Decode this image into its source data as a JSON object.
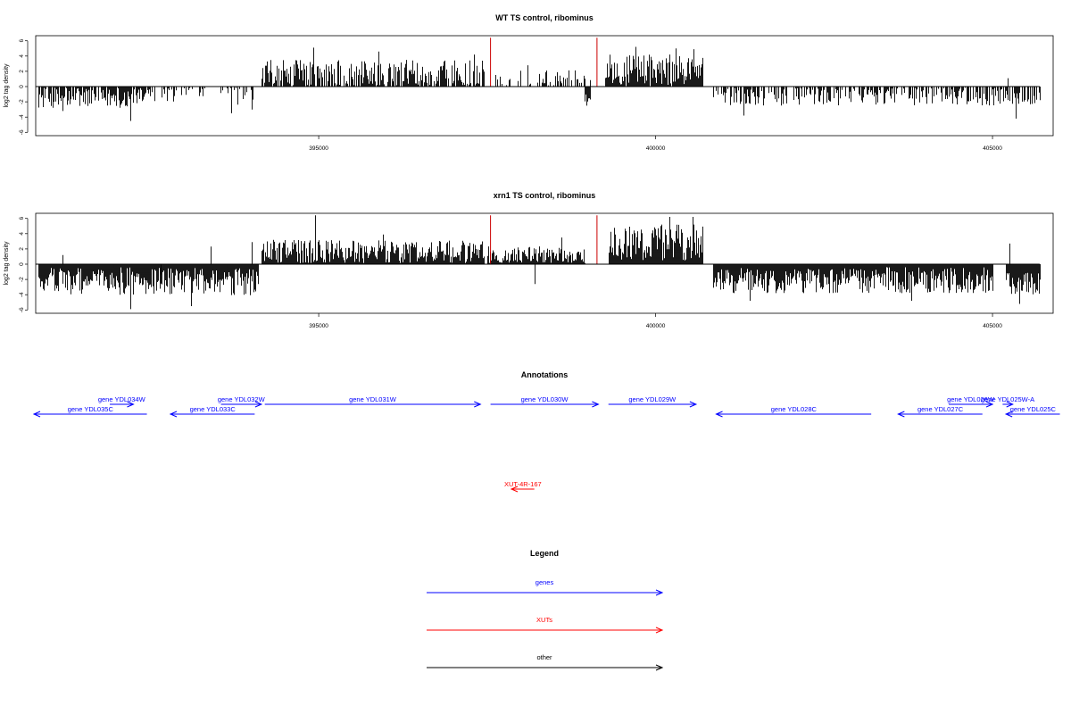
{
  "chart_data": [
    {
      "type": "bar",
      "title": "WT TS control, ribominus",
      "xlabel": "",
      "ylabel": "log2 tag density",
      "xlim": [
        390800,
        405900
      ],
      "ylim": [
        -6.2,
        6.6
      ],
      "x_ticks": [
        395000,
        400000,
        405000
      ],
      "x_tick_labels": [
        "395000",
        "400000",
        "405000"
      ],
      "y_ticks": [
        -6,
        -4,
        -2,
        0,
        2,
        4,
        6
      ],
      "y_tick_labels": [
        "-6",
        "-4",
        "-2",
        "0",
        "2",
        "4",
        "6"
      ],
      "baseline": {
        "x": [
          390800,
          405700
        ],
        "y": 0
      },
      "highlight_lines": [
        {
          "x": 397550,
          "value": 6.4,
          "color": "#cc0000"
        },
        {
          "x": 399130,
          "value": 6.4,
          "color": "#cc0000"
        }
      ],
      "segments": [
        {
          "from": 390840,
          "to": 392500,
          "mean": -1.4,
          "spread": 1.4,
          "density": 0.85,
          "peaks": [
            [
              392200,
              -4.5
            ],
            [
              391200,
              -3.2
            ]
          ]
        },
        {
          "from": 392500,
          "to": 394050,
          "mean": -1.0,
          "spread": 1.4,
          "density": 0.3,
          "peaks": [
            [
              393700,
              -3.5
            ],
            [
              394000,
              -3.0
            ]
          ]
        },
        {
          "from": 394150,
          "to": 397450,
          "mean": 1.6,
          "spread": 1.9,
          "density": 0.8,
          "peaks": [
            [
              394920,
              5.1
            ],
            [
              395880,
              4.6
            ],
            [
              397300,
              4.2
            ]
          ]
        },
        {
          "from": 397600,
          "to": 399050,
          "mean": 1.0,
          "spread": 1.2,
          "density": 0.35,
          "peaks": [
            [
              398100,
              2.8
            ]
          ]
        },
        {
          "from": 398950,
          "to": 399020,
          "mean": -1.5,
          "spread": 0.5,
          "density": 1.0,
          "peaks": [
            [
              398970,
              -2.5
            ]
          ]
        },
        {
          "from": 399250,
          "to": 400700,
          "mean": 2.2,
          "spread": 2.0,
          "density": 0.95,
          "peaks": [
            [
              399700,
              5.2
            ],
            [
              400300,
              5.0
            ],
            [
              400560,
              4.9
            ]
          ]
        },
        {
          "from": 400850,
          "to": 405700,
          "mean": -1.3,
          "spread": 1.2,
          "density": 0.55,
          "peaks": [
            [
              401300,
              -3.8
            ],
            [
              405230,
              1.1
            ],
            [
              405350,
              -4.2
            ]
          ]
        }
      ]
    },
    {
      "type": "bar",
      "title": "xrn1 TS control, ribominus",
      "xlabel": "",
      "ylabel": "log2 tag density",
      "xlim": [
        390800,
        405900
      ],
      "ylim": [
        -6.2,
        6.6
      ],
      "x_ticks": [
        395000,
        400000,
        405000
      ],
      "x_tick_labels": [
        "395000",
        "400000",
        "405000"
      ],
      "y_ticks": [
        -6,
        -4,
        -2,
        0,
        2,
        4,
        6
      ],
      "y_tick_labels": [
        "-6",
        "-4",
        "-2",
        "0",
        "2",
        "4",
        "6"
      ],
      "baseline": {
        "x": [
          390800,
          405700
        ],
        "y": 0
      },
      "highlight_lines": [
        {
          "x": 397550,
          "value": 6.4,
          "color": "#cc0000"
        },
        {
          "x": 399130,
          "value": 6.4,
          "color": "#cc0000"
        }
      ],
      "segments": [
        {
          "from": 390840,
          "to": 392650,
          "mean": -2.2,
          "spread": 1.8,
          "density": 1.0,
          "peaks": [
            [
              392200,
              -5.9
            ],
            [
              391200,
              1.2
            ],
            [
              392050,
              -4.0
            ]
          ]
        },
        {
          "from": 392650,
          "to": 394100,
          "mean": -2.3,
          "spread": 1.8,
          "density": 1.0,
          "peaks": [
            [
              393100,
              -5.5
            ],
            [
              393400,
              2.3
            ],
            [
              394000,
              2.9
            ]
          ]
        },
        {
          "from": 394150,
          "to": 397450,
          "mean": 1.6,
          "spread": 1.6,
          "density": 1.0,
          "peaks": [
            [
              394950,
              6.4
            ],
            [
              395950,
              3.9
            ]
          ]
        },
        {
          "from": 397500,
          "to": 398950,
          "mean": 1.1,
          "spread": 1.3,
          "density": 1.0,
          "peaks": [
            [
              398200,
              -2.6
            ],
            [
              398600,
              3.5
            ]
          ]
        },
        {
          "from": 399300,
          "to": 400700,
          "mean": 2.8,
          "spread": 2.4,
          "density": 1.0,
          "peaks": [
            [
              400200,
              6.2
            ],
            [
              400550,
              6.2
            ]
          ]
        },
        {
          "from": 400850,
          "to": 405000,
          "mean": -2.1,
          "spread": 1.7,
          "density": 1.0,
          "peaks": [
            [
              401400,
              -4.8
            ],
            [
              403800,
              -4.8
            ]
          ]
        },
        {
          "from": 405200,
          "to": 405700,
          "mean": -2.5,
          "spread": 1.5,
          "density": 1.0,
          "peaks": [
            [
              405250,
              2.7
            ],
            [
              405400,
              -5.2
            ]
          ]
        }
      ]
    },
    {
      "type": "diagram",
      "title": "Annotations",
      "xlim": [
        390800,
        405900
      ],
      "features": [
        {
          "label": "gene YDL035C",
          "start": 390750,
          "end": 392450,
          "strand": "-",
          "kind": "gene",
          "row": 1
        },
        {
          "label": "gene YDL034W",
          "start": 391900,
          "end": 392250,
          "strand": "+",
          "kind": "gene",
          "row": 0
        },
        {
          "label": "gene YDL033C",
          "start": 392800,
          "end": 394050,
          "strand": "-",
          "kind": "gene",
          "row": 1
        },
        {
          "label": "gene YDL032W",
          "start": 393550,
          "end": 394150,
          "strand": "+",
          "kind": "gene",
          "row": 0
        },
        {
          "label": "gene YDL031W",
          "start": 394200,
          "end": 397400,
          "strand": "+",
          "kind": "gene",
          "row": 0
        },
        {
          "label": "gene YDL030W",
          "start": 397550,
          "end": 399150,
          "strand": "+",
          "kind": "gene",
          "row": 0
        },
        {
          "label": "gene YDL029W",
          "start": 399300,
          "end": 400600,
          "strand": "+",
          "kind": "gene",
          "row": 0
        },
        {
          "label": "gene YDL028C",
          "start": 400900,
          "end": 403200,
          "strand": "-",
          "kind": "gene",
          "row": 1
        },
        {
          "label": "gene YDL027C",
          "start": 403600,
          "end": 404850,
          "strand": "-",
          "kind": "gene",
          "row": 1
        },
        {
          "label": "gene YDL026W",
          "start": 404350,
          "end": 405000,
          "strand": "+",
          "kind": "gene",
          "row": 0
        },
        {
          "label": "gene YDL025W-A",
          "start": 405150,
          "end": 405300,
          "strand": "+",
          "kind": "gene",
          "row": 0
        },
        {
          "label": "gene YDL025C",
          "start": 405200,
          "end": 406000,
          "strand": "-",
          "kind": "gene",
          "row": 1
        },
        {
          "label": "XUT-4R-167",
          "start": 397860,
          "end": 398200,
          "strand": "-",
          "kind": "xut",
          "row": 2
        }
      ]
    }
  ],
  "legend": {
    "title": "Legend",
    "items": [
      {
        "label": "genes",
        "color": "#0000ff"
      },
      {
        "label": "XUTs",
        "color": "#ff0000"
      },
      {
        "label": "other",
        "color": "#000000"
      }
    ]
  }
}
